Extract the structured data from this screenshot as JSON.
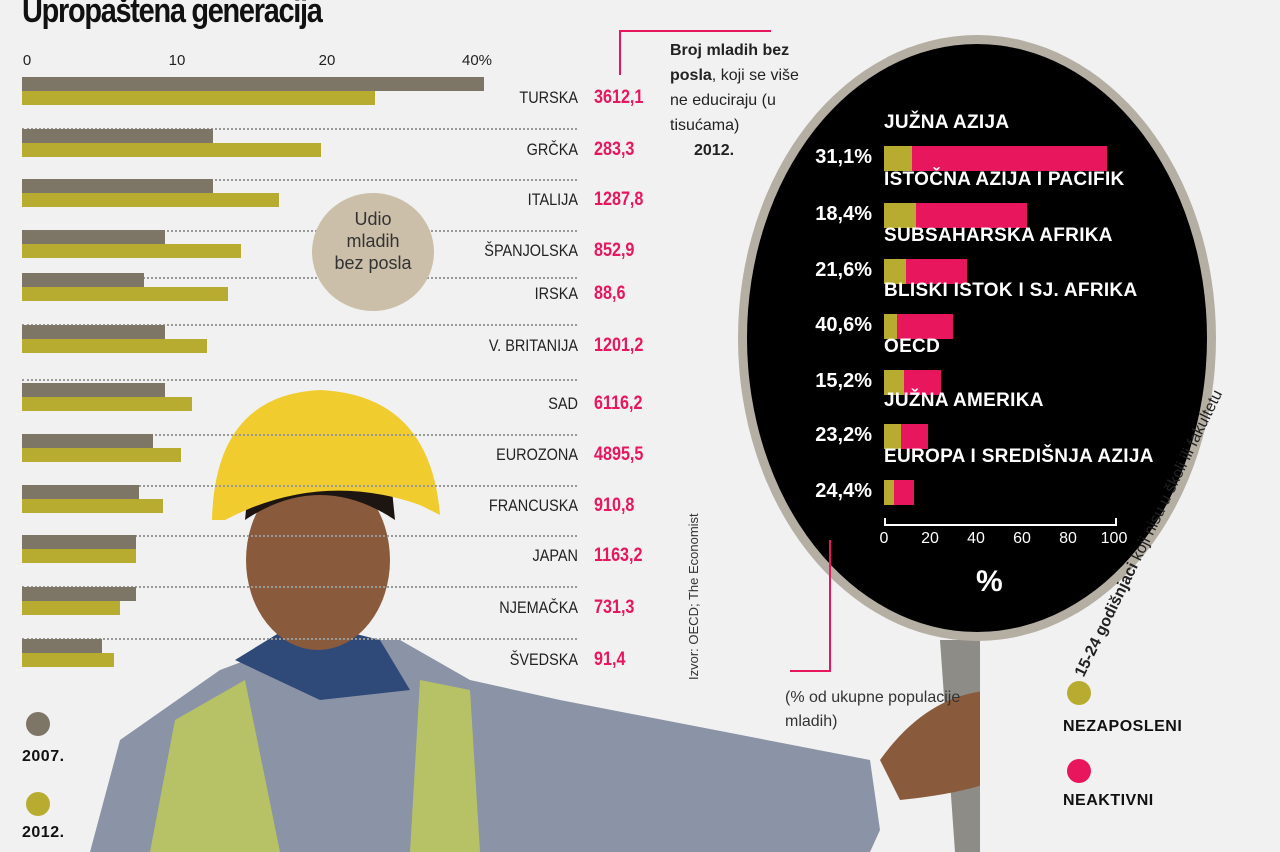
{
  "title": "Upropaštena generacija",
  "colors": {
    "y2007": "#7d7566",
    "y2012": "#b8ac30",
    "nezaposleni": "#b8ac30",
    "neaktivni": "#e8175d",
    "accent": "#e8175d"
  },
  "bubble_label": [
    "Udio",
    "mladih",
    "bez posla"
  ],
  "count_note": {
    "bold": "Broj mladih bez posla",
    "rest": ", koji se više ne educiraju (u tisućama)",
    "year": "2012."
  },
  "source": "Izvor: OECD; The Economist",
  "legend_left": [
    {
      "label": "2007."
    },
    {
      "label": "2012."
    }
  ],
  "pct_note": "(% od ukupne populacije mladih)",
  "right_caption": {
    "bold": "15-24 godišnjaci",
    "rest": " koji nisu u školi ili fakultetu"
  },
  "legend_right": [
    {
      "label": "NEZAPOSLENI"
    },
    {
      "label": "NEAKTIVNI"
    }
  ],
  "chart_data": [
    {
      "type": "bar",
      "orientation": "horizontal",
      "xticks": [
        "0",
        "10",
        "20",
        "40%"
      ],
      "categories": [
        "TURSKA",
        "GRČKA",
        "ITALIJA",
        "ŠPANJOLSKA",
        "IRSKA",
        "V. BRITANIJA",
        "SAD",
        "EUROZONA",
        "FRANCUSKA",
        "JAPAN",
        "NJEMAČKA",
        "ŠVEDSKA"
      ],
      "series": [
        {
          "name": "2007.",
          "values": [
            30.8,
            12.7,
            12.7,
            9.5,
            8.1,
            9.5,
            9.5,
            8.7,
            7.8,
            7.6,
            7.6,
            5.3
          ]
        },
        {
          "name": "2012.",
          "values": [
            23.5,
            19.9,
            17.1,
            14.6,
            13.7,
            12.3,
            11.3,
            10.6,
            9.4,
            7.6,
            6.5,
            6.1
          ]
        }
      ],
      "counts_thousands_2012": [
        "3612,1",
        "283,3",
        "1287,8",
        "852,9",
        "88,6",
        "1201,2",
        "6116,2",
        "4895,5",
        "910,8",
        "1163,2",
        "731,3",
        "91,4"
      ]
    },
    {
      "type": "bar",
      "orientation": "horizontal",
      "stacked": true,
      "xlabel": "%",
      "xlim": [
        0,
        100
      ],
      "xticks": [
        "0",
        "20",
        "40",
        "60",
        "80",
        "100"
      ],
      "categories": [
        "JUŽNA AZIJA",
        "ISTOČNA AZIJA I PACIFIK",
        "SUBSAHARSKA AFRIKA",
        "BLISKI ISTOK I SJ. AFRIKA",
        "OECD",
        "JUŽNA AMERIKA",
        "EUROPA I SREDIŠNJA AZIJA"
      ],
      "pct_labels": [
        "31,1%",
        "18,4%",
        "21,6%",
        "40,6%",
        "15,2%",
        "23,2%",
        "24,4%"
      ],
      "series": [
        {
          "name": "NEZAPOSLENI",
          "values": [
            12,
            14,
            9.5,
            5.6,
            8.7,
            7.4,
            4.3
          ]
        },
        {
          "name": "NEAKTIVNI",
          "values": [
            85,
            48,
            26.5,
            24.4,
            16.3,
            11.6,
            8.7
          ]
        }
      ]
    }
  ]
}
